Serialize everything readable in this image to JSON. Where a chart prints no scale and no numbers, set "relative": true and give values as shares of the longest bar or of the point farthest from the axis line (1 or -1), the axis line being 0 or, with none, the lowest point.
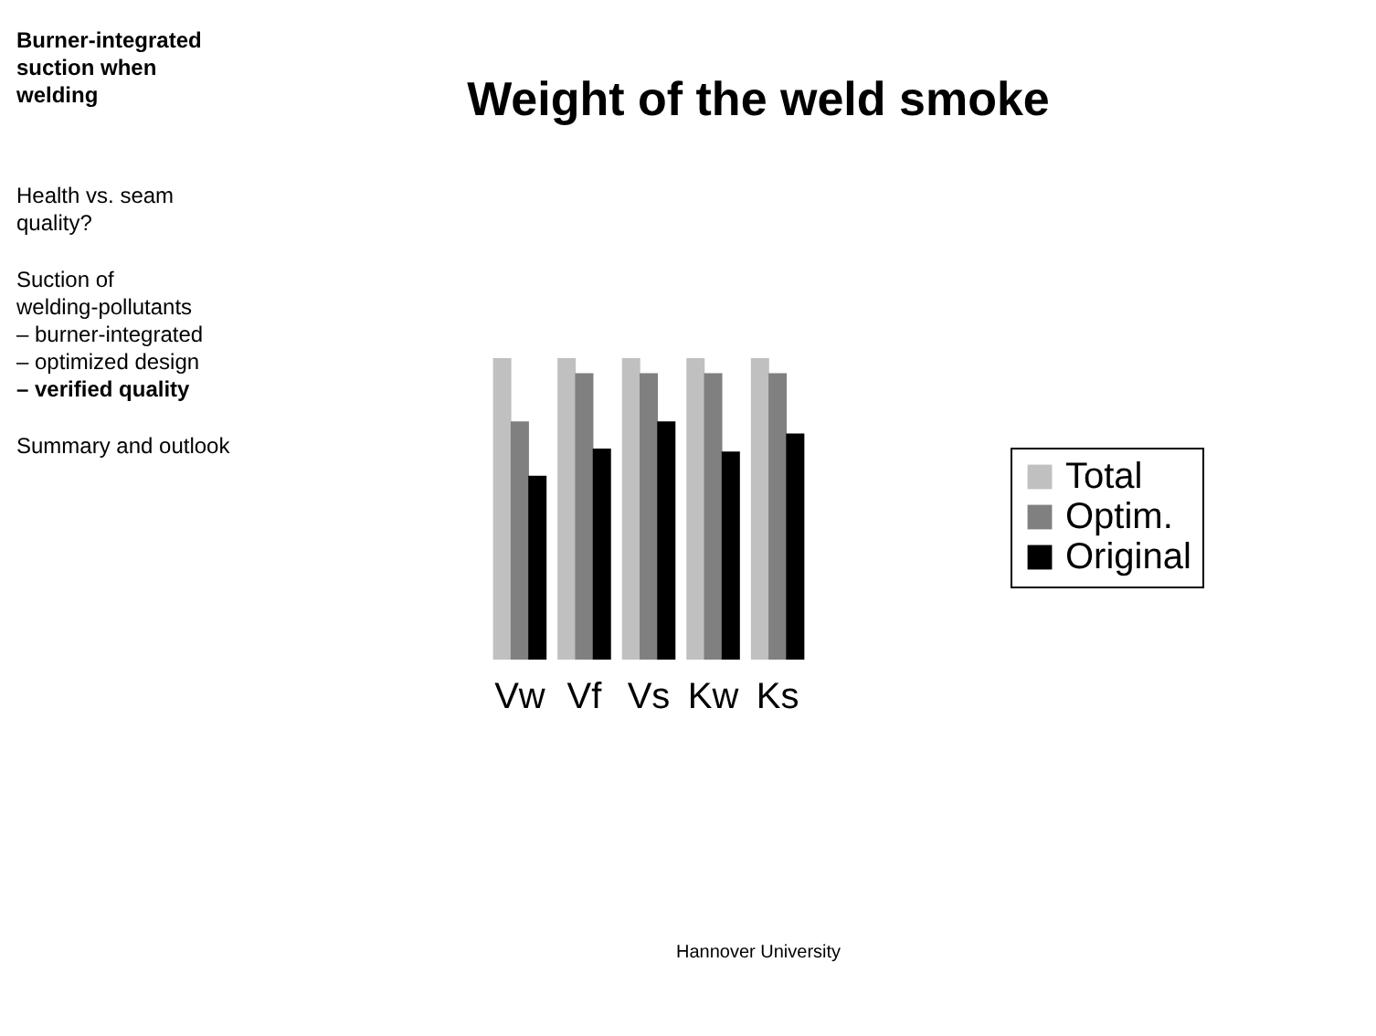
{
  "chart_data": {
    "type": "bar",
    "title": "Weight of the weld smoke",
    "relative": true,
    "legend": "right",
    "categories": [
      "Vw",
      "Vf",
      "Vs",
      "Kw",
      "Ks"
    ],
    "series": [
      {
        "name": "Total",
        "color": "#c0c0c0",
        "values": [
          1,
          1,
          1,
          1,
          1
        ]
      },
      {
        "name": "Optim.",
        "color": "#808080",
        "values": [
          0.79,
          0.95,
          0.95,
          0.95,
          0.95
        ]
      },
      {
        "name": "Original",
        "color": "#000000",
        "values": [
          0.61,
          0.7,
          0.79,
          0.69,
          0.75
        ]
      }
    ],
    "annotations": [
      "Burner-integrated suction when welding",
      "Health vs. seam quality?",
      "Suction of welding-pollutants",
      "– burner-integrated",
      "– optimized design",
      "– verified quality",
      "Summary and outlook",
      "Hannover University"
    ]
  }
}
